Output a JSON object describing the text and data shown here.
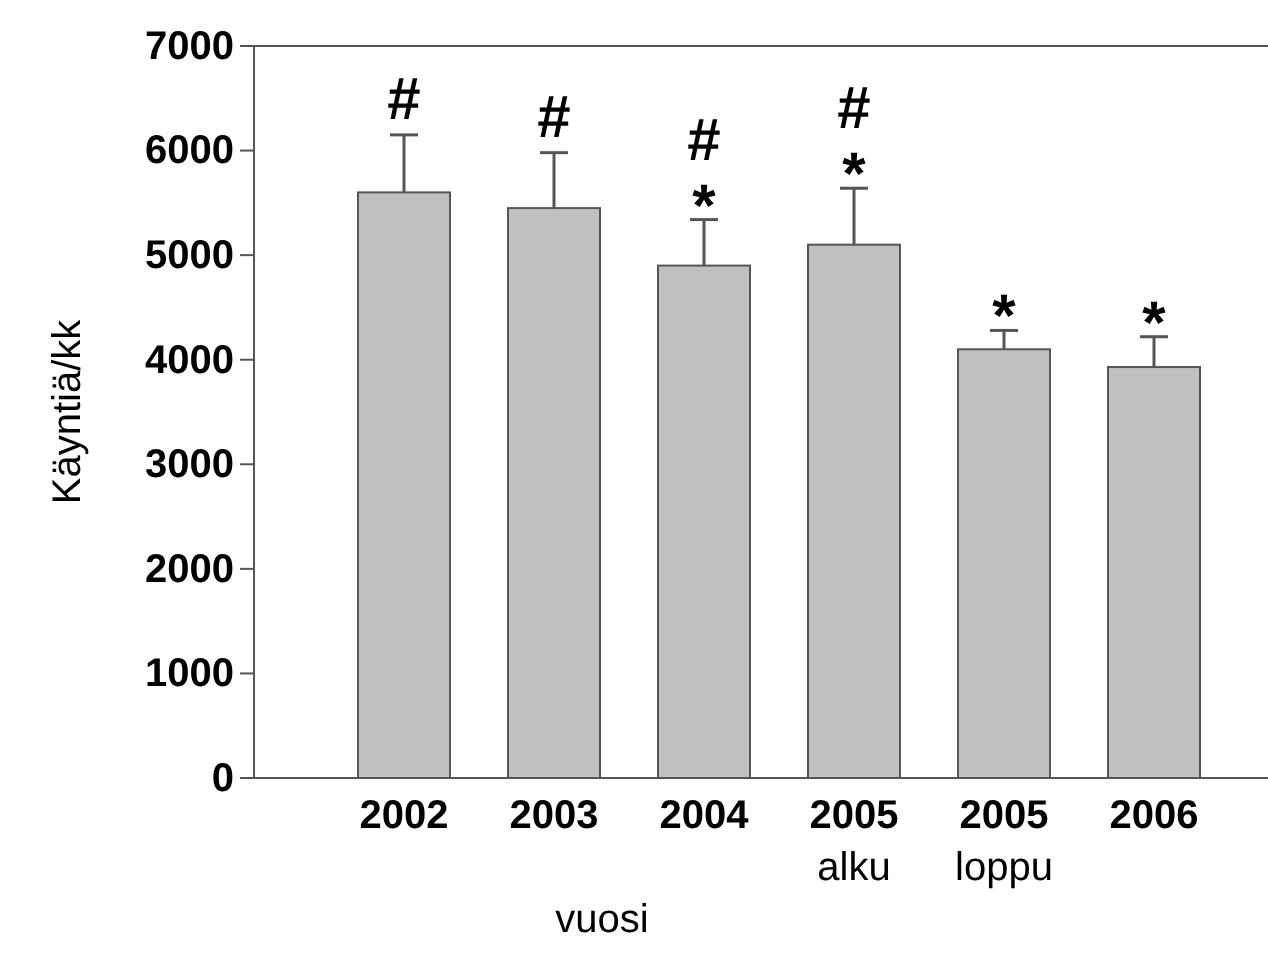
{
  "chart_data": {
    "type": "bar",
    "xlabel": "vuosi",
    "ylabel": "Käyntiä/kk",
    "categories": [
      "2002",
      "2003",
      "2004",
      "2005\nalku",
      "2005\nloppu",
      "2006"
    ],
    "values": [
      5600,
      5450,
      4900,
      5100,
      4100,
      3930
    ],
    "errors": [
      [
        5600,
        6150
      ],
      [
        5450,
        5980
      ],
      [
        4900,
        5340
      ],
      [
        5100,
        5640
      ],
      [
        4100,
        4280
      ],
      [
        3930,
        4220
      ]
    ],
    "color": "#c0c0c0",
    "ylim": [
      0,
      7000
    ],
    "yticks": [
      0,
      1000,
      2000,
      3000,
      4000,
      5000,
      6000,
      7000
    ],
    "grid": false,
    "annotations": [
      {
        "text": "#",
        "x": "2002",
        "y": 6150
      },
      {
        "text": "#",
        "x": "2003",
        "y": 5980
      },
      {
        "text": "*",
        "x": "2004",
        "y": 5340
      },
      {
        "text": "#",
        "x": "2004",
        "y": 5340
      },
      {
        "text": "*",
        "x": "2005\nalku",
        "y": 5640
      },
      {
        "text": "#",
        "x": "2005\nalku",
        "y": 5640
      },
      {
        "text": "*",
        "x": "2005\nloppu",
        "y": 4280
      },
      {
        "text": "*",
        "x": "2006",
        "y": 4220
      }
    ]
  }
}
